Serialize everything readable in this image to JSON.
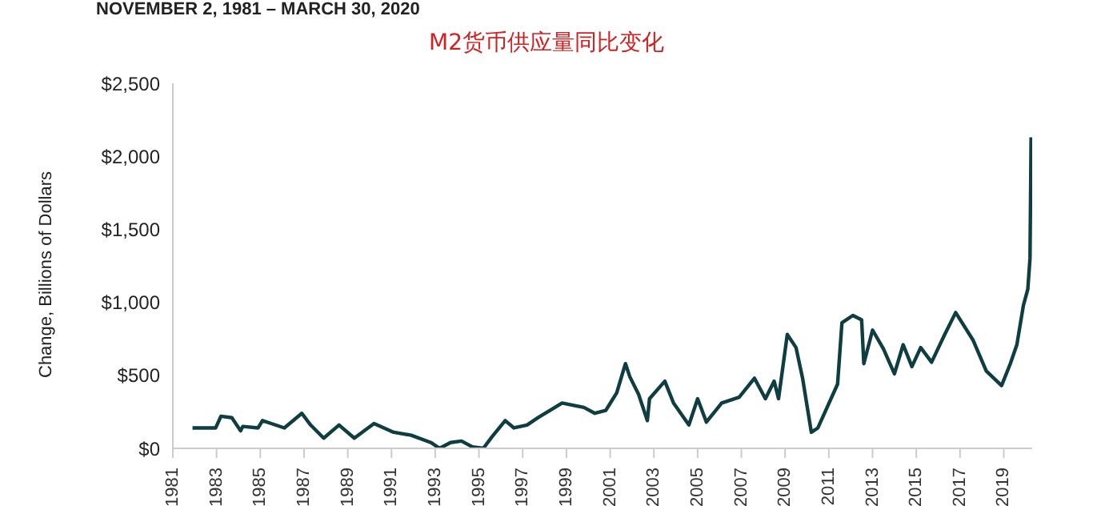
{
  "chart_data": {
    "type": "line",
    "title": "M2货币供应量同比变化",
    "subtitle": "NOVEMBER 2, 1981 – MARCH 30, 2020",
    "ylabel": "Change, Billions of Dollars",
    "x": [
      1981.9,
      1982.96,
      1983.2,
      1983.7,
      1984.1,
      1984.2,
      1984.9,
      1985.1,
      1985.5,
      1986.1,
      1986.9,
      1987.3,
      1987.9,
      1988.6,
      1989.3,
      1990.2,
      1991.1,
      1991.9,
      1992.8,
      1993.2,
      1993.7,
      1994.2,
      1994.7,
      1995.2,
      1995.6,
      1996.2,
      1996.6,
      1997.2,
      1997.7,
      1998.8,
      1999.8,
      2000.3,
      2000.8,
      2001.3,
      2001.7,
      2001.9,
      2002.3,
      2002.7,
      2002.8,
      2003.5,
      2003.9,
      2004.6,
      2005.0,
      2005.4,
      2006.1,
      2006.9,
      2007.6,
      2008.1,
      2008.5,
      2008.7,
      2009.1,
      2009.5,
      2009.8,
      2010.2,
      2010.5,
      2011.4,
      2011.6,
      2012.1,
      2012.5,
      2012.6,
      2013.0,
      2013.5,
      2014.0,
      2014.4,
      2014.8,
      2015.2,
      2015.7,
      2016.3,
      2016.8,
      2017.6,
      2018.2,
      2018.9,
      2019.3,
      2019.6,
      2019.9,
      2020.1,
      2020.2,
      2020.25
    ],
    "series": [
      {
        "color": "#0e3d42",
        "values": [
          140,
          140,
          220,
          210,
          120,
          150,
          140,
          190,
          170,
          140,
          240,
          160,
          70,
          160,
          70,
          170,
          110,
          90,
          40,
          0,
          40,
          50,
          10,
          0,
          80,
          190,
          140,
          160,
          210,
          310,
          280,
          240,
          260,
          380,
          580,
          490,
          370,
          190,
          340,
          460,
          310,
          160,
          340,
          180,
          310,
          350,
          480,
          340,
          460,
          340,
          780,
          690,
          480,
          110,
          140,
          440,
          860,
          910,
          880,
          580,
          810,
          680,
          510,
          710,
          560,
          690,
          590,
          780,
          930,
          740,
          530,
          430,
          580,
          710,
          980,
          1090,
          1300,
          2130
        ]
      }
    ],
    "xlim": [
      1981,
      2020.3
    ],
    "xticks": [
      1981,
      1983,
      1985,
      1987,
      1989,
      1991,
      1993,
      1995,
      1997,
      1999,
      2001,
      2003,
      2005,
      2007,
      2009,
      2011,
      2013,
      2015,
      2017,
      2019
    ],
    "ylim": [
      0,
      2500
    ],
    "yticks": [
      {
        "value": 0,
        "label": "$0"
      },
      {
        "value": 500,
        "label": "$500"
      },
      {
        "value": 1000,
        "label": "$1,000"
      },
      {
        "value": 1500,
        "label": "$1,500"
      },
      {
        "value": 2000,
        "label": "$2,000"
      },
      {
        "value": 2500,
        "label": "$2,500"
      }
    ],
    "grid": false,
    "marker": "none",
    "line_style": "solid"
  }
}
